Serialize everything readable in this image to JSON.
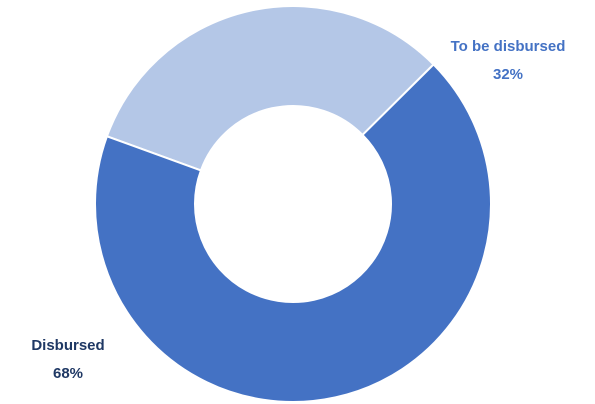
{
  "chart_data": {
    "type": "pie",
    "donut": true,
    "slices": [
      {
        "label": "Disbursed",
        "value": 68,
        "value_label": "68%",
        "color": "#4472c4",
        "label_color": "#1f3864"
      },
      {
        "label": "To be disbursed",
        "value": 32,
        "value_label": "32%",
        "color": "#b4c7e7",
        "label_color": "#4472c4"
      }
    ]
  }
}
